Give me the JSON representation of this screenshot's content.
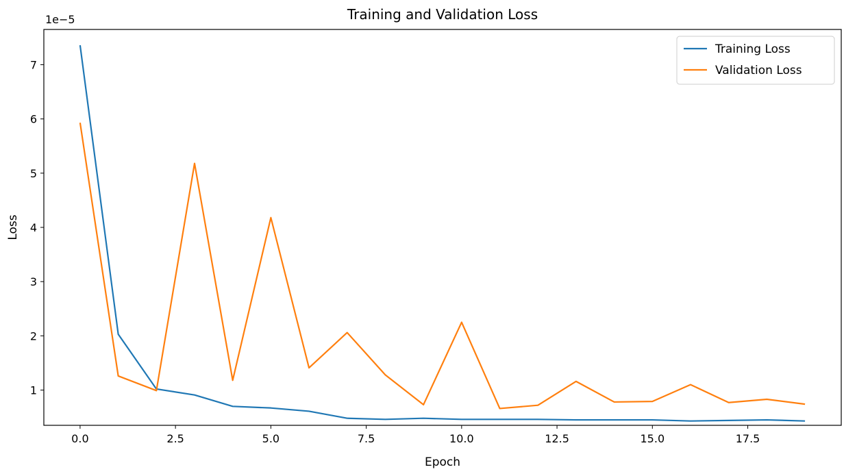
{
  "chart_data": {
    "type": "line",
    "title": "Training and Validation Loss",
    "xlabel": "Epoch",
    "ylabel": "Loss",
    "y_multiplier_label": "1e−5",
    "x": [
      0,
      1,
      2,
      3,
      4,
      5,
      6,
      7,
      8,
      9,
      10,
      11,
      12,
      13,
      14,
      15,
      16,
      17,
      18,
      19
    ],
    "xlim": [
      -0.95,
      19.95
    ],
    "ylim": [
      0.35,
      7.65
    ],
    "xticks": [
      0.0,
      2.5,
      5.0,
      7.5,
      10.0,
      12.5,
      15.0,
      17.5
    ],
    "xtick_labels": [
      "0.0",
      "2.5",
      "5.0",
      "7.5",
      "10.0",
      "12.5",
      "15.0",
      "17.5"
    ],
    "yticks": [
      1,
      2,
      3,
      4,
      5,
      6,
      7
    ],
    "ytick_labels": [
      "1",
      "2",
      "3",
      "4",
      "5",
      "6",
      "7"
    ],
    "grid": false,
    "legend_position": "top-right",
    "series": [
      {
        "name": "Training Loss",
        "color": "#1f77b4",
        "values": [
          7.36,
          2.03,
          1.02,
          0.91,
          0.7,
          0.67,
          0.61,
          0.48,
          0.46,
          0.48,
          0.46,
          0.46,
          0.46,
          0.45,
          0.45,
          0.45,
          0.43,
          0.44,
          0.45,
          0.43
        ]
      },
      {
        "name": "Validation Loss",
        "color": "#ff7f0e",
        "values": [
          5.93,
          1.26,
          0.99,
          5.18,
          1.18,
          4.18,
          1.41,
          2.06,
          1.28,
          0.73,
          2.25,
          0.66,
          0.72,
          1.16,
          0.78,
          0.79,
          1.1,
          0.77,
          0.83,
          0.74
        ]
      }
    ]
  }
}
